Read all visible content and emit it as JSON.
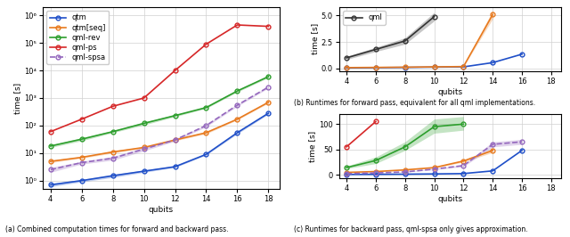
{
  "chart_data": [
    {
      "type": "line",
      "caption": "(a) Combined computation times for forward and backward pass.",
      "x_label": "qubits",
      "y_label": "time [s]",
      "x": [
        4,
        6,
        8,
        10,
        12,
        14,
        16,
        18
      ],
      "xlim": [
        3.5,
        18.7
      ],
      "xticks": [
        4,
        6,
        8,
        10,
        12,
        14,
        16,
        18
      ],
      "log": "y",
      "ylim": [
        0.5,
        2000000.0
      ],
      "yticks": [
        {
          "value": 1,
          "label": "10⁰"
        },
        {
          "value": 10,
          "label": "10¹"
        },
        {
          "value": 100,
          "label": "10²"
        },
        {
          "value": 1000,
          "label": "10³"
        },
        {
          "value": 10000,
          "label": "10⁴"
        },
        {
          "value": 100000,
          "label": "10⁵"
        },
        {
          "value": 1000000,
          "label": "10⁶"
        }
      ],
      "grid": true,
      "legend": "upper left",
      "series": [
        {
          "name": "qtm",
          "color": "#1f4fc8",
          "marker": "o",
          "line_style": "solid",
          "values": [
            0.7,
            1.0,
            1.5,
            2.2,
            3.2,
            9.0,
            55,
            280
          ],
          "lower": [
            0.6,
            0.9,
            1.3,
            2.0,
            3.0,
            8.5,
            50,
            260
          ],
          "upper": [
            0.8,
            1.1,
            1.7,
            2.4,
            3.5,
            9.5,
            60,
            300
          ]
        },
        {
          "name": "qtm[seq]",
          "color": "#e87a1e",
          "marker": "o",
          "line_style": "solid",
          "values": [
            5.0,
            7.0,
            11,
            16,
            30,
            55,
            170,
            700
          ],
          "lower": [
            4.5,
            6.5,
            10,
            15,
            28,
            50,
            160,
            650
          ],
          "upper": [
            5.5,
            7.5,
            12,
            17,
            32,
            60,
            180,
            750
          ]
        },
        {
          "name": "qml-rev",
          "color": "#2c9e2c",
          "marker": "o",
          "line_style": "solid",
          "values": [
            18,
            32,
            60,
            120,
            230,
            450,
            1800,
            6000
          ],
          "lower": [
            16,
            28,
            55,
            105,
            210,
            420,
            1650,
            5500
          ],
          "upper": [
            20,
            36,
            66,
            135,
            250,
            480,
            1950,
            6500
          ]
        },
        {
          "name": "qml-ps",
          "color": "#d62728",
          "marker": "o",
          "line_style": "solid",
          "values": [
            60,
            170,
            500,
            1000,
            10000,
            90000,
            450000,
            400000
          ]
        },
        {
          "name": "qml-spsa",
          "color": "#9467bd",
          "marker": "o",
          "line_style": "dashed",
          "values": [
            2.5,
            4.5,
            6.5,
            14,
            30,
            100,
            550,
            2500
          ],
          "lower": [
            2.0,
            4.0,
            5.5,
            12,
            27,
            90,
            500,
            2300
          ],
          "upper": [
            3.0,
            5.0,
            7.5,
            16,
            33,
            110,
            600,
            2700
          ]
        }
      ]
    },
    {
      "type": "line",
      "caption": "(b) Runtimes for forward pass, equivalent for all qml implementations.",
      "x_label": "qubits",
      "y_label": "time [s]",
      "x": [
        4,
        6,
        8,
        10,
        12,
        14,
        16,
        18
      ],
      "xlim": [
        3.5,
        18.7
      ],
      "xticks": [
        4,
        6,
        8,
        10,
        12,
        14,
        16,
        18
      ],
      "ylim": [
        -0.25,
        5.8
      ],
      "yticks": [
        {
          "value": 0,
          "label": "0.0"
        },
        2.5,
        {
          "value": 5,
          "label": "5.0"
        }
      ],
      "grid": true,
      "legend": "upper left",
      "series": [
        {
          "name": "qml",
          "color": "#333333",
          "marker": "o",
          "line_style": "solid",
          "values": [
            1.0,
            1.8,
            2.6,
            4.9,
            null,
            null,
            null,
            null
          ],
          "lower": [
            0.85,
            1.6,
            2.3,
            4.5,
            null,
            null,
            null,
            null
          ],
          "upper": [
            1.15,
            2.0,
            2.9,
            5.3,
            null,
            null,
            null,
            null
          ]
        },
        {
          "color": "#1f4fc8",
          "marker": "o",
          "line_style": "solid",
          "values": [
            0.05,
            0.08,
            0.1,
            0.13,
            0.15,
            0.55,
            1.35,
            null
          ]
        },
        {
          "color": "#e87a1e",
          "marker": "o",
          "line_style": "solid",
          "values": [
            0.08,
            0.1,
            0.12,
            0.15,
            0.18,
            5.1,
            null,
            null
          ],
          "lower": [
            0.07,
            0.09,
            0.11,
            0.14,
            0.16,
            4.7,
            null,
            null
          ],
          "upper": [
            0.09,
            0.11,
            0.13,
            0.16,
            0.2,
            5.5,
            null,
            null
          ]
        }
      ]
    },
    {
      "type": "line",
      "caption": "(c) Runtimes for backward pass, qml-spsa only gives approximation.",
      "x_label": "qubits",
      "y_label": "time [s]",
      "x": [
        4,
        6,
        8,
        10,
        12,
        14,
        16,
        18
      ],
      "xlim": [
        3.5,
        18.7
      ],
      "xticks": [
        4,
        6,
        8,
        10,
        12,
        14,
        16,
        18
      ],
      "ylim": [
        -7,
        120
      ],
      "yticks": [
        0,
        50,
        100
      ],
      "grid": true,
      "series": [
        {
          "color": "#d62728",
          "marker": "o",
          "line_style": "solid",
          "values": [
            55,
            105,
            null,
            null,
            null,
            null,
            null,
            null
          ]
        },
        {
          "color": "#2c9e2c",
          "marker": "o",
          "line_style": "solid",
          "values": [
            14,
            28,
            55,
            95,
            100,
            null,
            null,
            null
          ],
          "lower": [
            12,
            22,
            48,
            82,
            88,
            null,
            null,
            null
          ],
          "upper": [
            17,
            35,
            65,
            110,
            115,
            null,
            null,
            null
          ]
        },
        {
          "color": "#e87a1e",
          "marker": "o",
          "line_style": "solid",
          "values": [
            4.5,
            6.2,
            9.5,
            14,
            27,
            48,
            null,
            null
          ],
          "lower": [
            4.2,
            5.8,
            9.0,
            13,
            25,
            44,
            null,
            null
          ],
          "upper": [
            4.8,
            6.6,
            10,
            15,
            29,
            52,
            null,
            null
          ]
        },
        {
          "color": "#1f4fc8",
          "marker": "o",
          "line_style": "solid",
          "values": [
            0.5,
            0.7,
            1.0,
            1.5,
            2.2,
            7.5,
            48,
            null
          ]
        },
        {
          "color": "#9467bd",
          "marker": "o",
          "line_style": "dashed",
          "values": [
            2.0,
            3.5,
            5.5,
            11,
            18,
            60,
            65,
            null
          ],
          "lower": [
            1.8,
            3.0,
            5.0,
            10,
            16,
            55,
            60,
            null
          ],
          "upper": [
            2.2,
            4.0,
            6.0,
            12,
            20,
            65,
            70,
            null
          ]
        }
      ]
    }
  ]
}
